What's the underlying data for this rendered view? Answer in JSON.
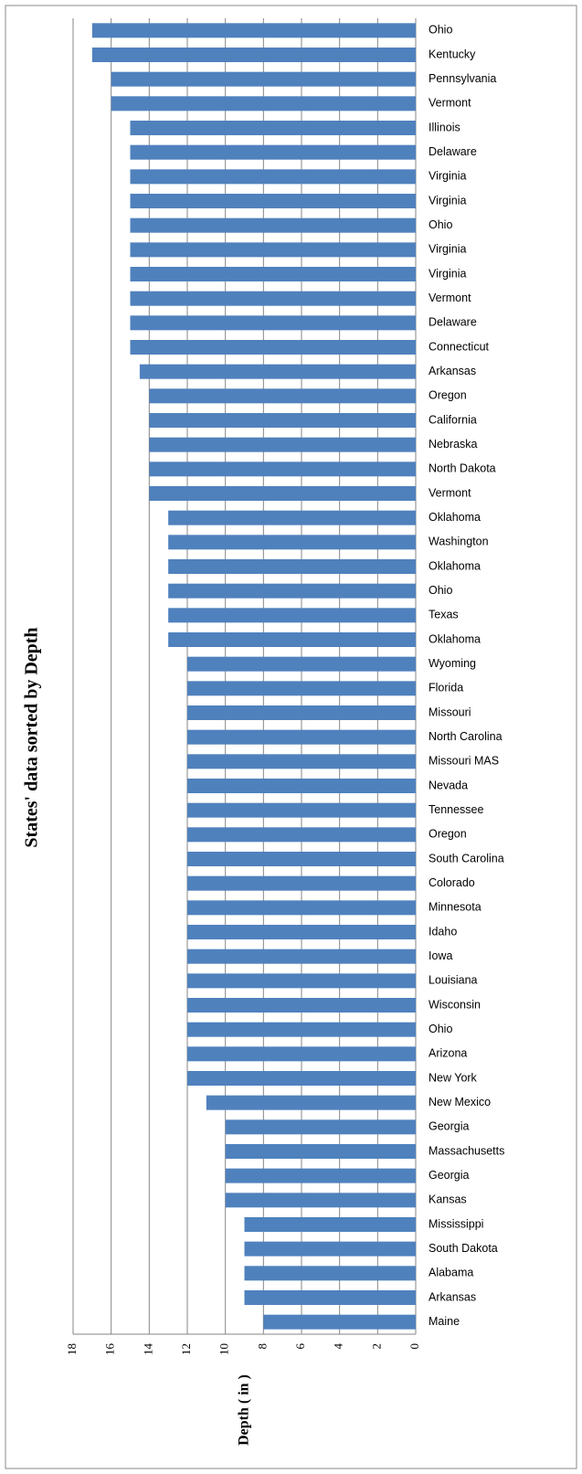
{
  "chart_data": {
    "type": "bar",
    "title": "States' data sorted by Depth",
    "y_label": "Depth ( in )",
    "categories": [
      "Maine",
      "Arkansas",
      "Alabama",
      "South Dakota",
      "Mississippi",
      "Kansas",
      "Georgia",
      "Massachusetts",
      "Georgia",
      "New Mexico",
      "New York",
      "Arizona",
      "Ohio",
      "Wisconsin",
      "Louisiana",
      "Iowa",
      "Idaho",
      "Minnesota",
      "Colorado",
      "South Carolina",
      "Oregon",
      "Tennessee",
      "Nevada",
      "Missouri MAS",
      "North Carolina",
      "Missouri",
      "Florida",
      "Wyoming",
      "Oklahoma",
      "Texas",
      "Ohio",
      "Oklahoma",
      "Washington",
      "Oklahoma",
      "Vermont",
      "North Dakota",
      "Nebraska",
      "California",
      "Oregon",
      "Arkansas",
      "Connecticut",
      "Delaware",
      "Vermont",
      "Virginia",
      "Virginia",
      "Ohio",
      "Virginia",
      "Virginia",
      "Delaware",
      "Illinois",
      "Vermont",
      "Pennsylvania",
      "Kentucky",
      "Ohio"
    ],
    "values": [
      8,
      9,
      9,
      9,
      9,
      10,
      10,
      10,
      10,
      11,
      12,
      12,
      12,
      12,
      12,
      12,
      12,
      12,
      12,
      12,
      12,
      12,
      12,
      12,
      12,
      12,
      12,
      12,
      13,
      13,
      13,
      13,
      13,
      13,
      14,
      14,
      14,
      14,
      14,
      14.5,
      15,
      15,
      15,
      15,
      15,
      15,
      15,
      15,
      15,
      15,
      16,
      16,
      17,
      17
    ],
    "color": "#4f81bd",
    "ylim": [
      0,
      18
    ],
    "yticks": [
      0,
      2,
      4,
      6,
      8,
      10,
      12,
      14,
      16,
      18
    ],
    "grid": true
  }
}
